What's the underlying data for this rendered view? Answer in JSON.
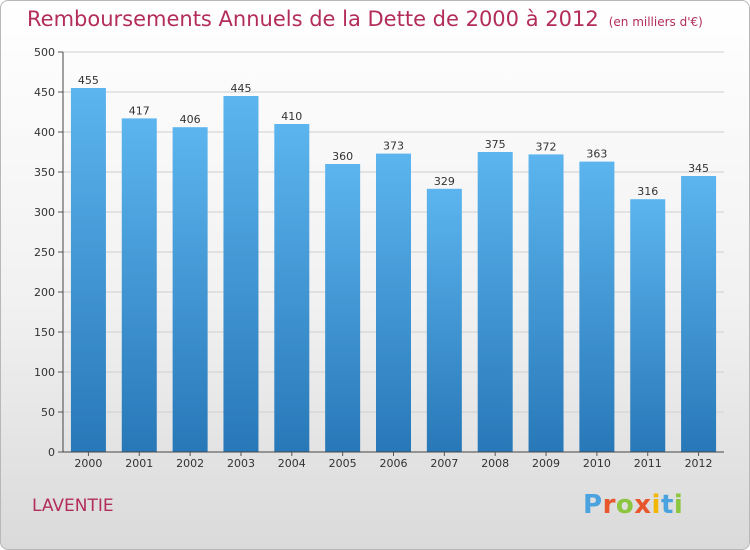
{
  "header": {
    "title": "Remboursements Annuels de la Dette de 2000 à 2012",
    "unit": "(en milliers d'€)"
  },
  "commune": "LAVENTIE",
  "logo": {
    "text": "Proxiti",
    "colors": [
      "#4aa3df",
      "#e8562c",
      "#8cc63f",
      "#e8562c",
      "#f2b705",
      "#4aa3df",
      "#8cc63f"
    ]
  },
  "chart_data": {
    "type": "bar",
    "categories": [
      "2000",
      "2001",
      "2002",
      "2003",
      "2004",
      "2005",
      "2006",
      "2007",
      "2008",
      "2009",
      "2010",
      "2011",
      "2012"
    ],
    "values": [
      455,
      417,
      406,
      445,
      410,
      360,
      373,
      329,
      375,
      372,
      363,
      316,
      345
    ],
    "ylim": [
      0,
      500
    ],
    "yticks": [
      0,
      50,
      100,
      150,
      200,
      250,
      300,
      350,
      400,
      450,
      500
    ],
    "grid": true,
    "colors": {
      "bar_top": "#5cb5ee",
      "bar_bottom": "#2878b8",
      "grid": "#cfcfcf"
    }
  }
}
